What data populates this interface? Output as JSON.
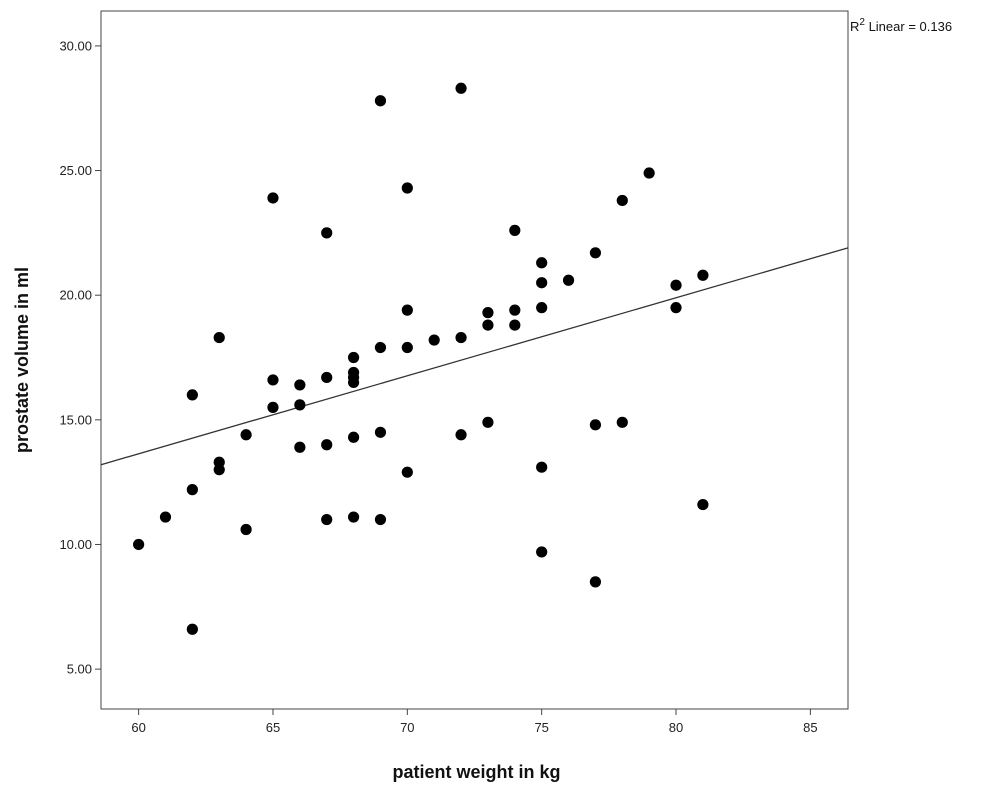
{
  "chart_data": {
    "type": "scatter",
    "title": "",
    "xlabel": "patient weight in kg",
    "ylabel": "prostate volume in ml",
    "xlim": [
      58.6,
      86.4
    ],
    "ylim": [
      3.4,
      31.4
    ],
    "x_ticks": [
      60,
      65,
      70,
      75,
      80,
      85
    ],
    "x_tick_labels": [
      "60",
      "65",
      "70",
      "75",
      "80",
      "85"
    ],
    "y_ticks": [
      5,
      10,
      15,
      20,
      25,
      30
    ],
    "y_tick_labels": [
      "5.00",
      "10.00",
      "15.00",
      "20.00",
      "25.00",
      "30.00"
    ],
    "grid": false,
    "legend": "none",
    "series": [
      {
        "points": [
          [
            60,
            10.0
          ],
          [
            61,
            11.1
          ],
          [
            62,
            16.0
          ],
          [
            62,
            12.2
          ],
          [
            62,
            6.6
          ],
          [
            63,
            18.3
          ],
          [
            63,
            13.3
          ],
          [
            63,
            13.0
          ],
          [
            64,
            14.4
          ],
          [
            64,
            10.6
          ],
          [
            65,
            23.9
          ],
          [
            65,
            16.6
          ],
          [
            65,
            15.5
          ],
          [
            66,
            16.4
          ],
          [
            66,
            15.6
          ],
          [
            66,
            13.9
          ],
          [
            67,
            22.5
          ],
          [
            67,
            16.7
          ],
          [
            67,
            14.0
          ],
          [
            67,
            11.0
          ],
          [
            68,
            17.5
          ],
          [
            68,
            16.9
          ],
          [
            68,
            16.7
          ],
          [
            68,
            16.5
          ],
          [
            68,
            14.3
          ],
          [
            68,
            11.1
          ],
          [
            69,
            27.8
          ],
          [
            69,
            17.9
          ],
          [
            69,
            14.5
          ],
          [
            69,
            11.0
          ],
          [
            70,
            24.3
          ],
          [
            70,
            19.4
          ],
          [
            70,
            17.9
          ],
          [
            70,
            12.9
          ],
          [
            71,
            18.2
          ],
          [
            72,
            28.3
          ],
          [
            72,
            18.3
          ],
          [
            72,
            14.4
          ],
          [
            73,
            19.3
          ],
          [
            73,
            18.8
          ],
          [
            73,
            14.9
          ],
          [
            74,
            22.6
          ],
          [
            74,
            19.4
          ],
          [
            74,
            18.8
          ],
          [
            75,
            21.3
          ],
          [
            75,
            20.5
          ],
          [
            75,
            19.5
          ],
          [
            75,
            13.1
          ],
          [
            75,
            9.7
          ],
          [
            76,
            20.6
          ],
          [
            77,
            21.7
          ],
          [
            77,
            14.8
          ],
          [
            77,
            8.5
          ],
          [
            78,
            23.8
          ],
          [
            78,
            14.9
          ],
          [
            79,
            24.9
          ],
          [
            80,
            20.4
          ],
          [
            80,
            19.5
          ],
          [
            81,
            20.8
          ],
          [
            81,
            11.6
          ]
        ]
      }
    ],
    "fit_line": {
      "type": "linear",
      "x": [
        58.6,
        86.4
      ],
      "y": [
        13.2,
        21.9
      ]
    },
    "annotation": {
      "text_base": "R",
      "text_sup": "2",
      "text_rest": " Linear = 0.136"
    },
    "colors": {
      "marker": "#000000",
      "line": "#333333",
      "frame": "#444444"
    }
  }
}
